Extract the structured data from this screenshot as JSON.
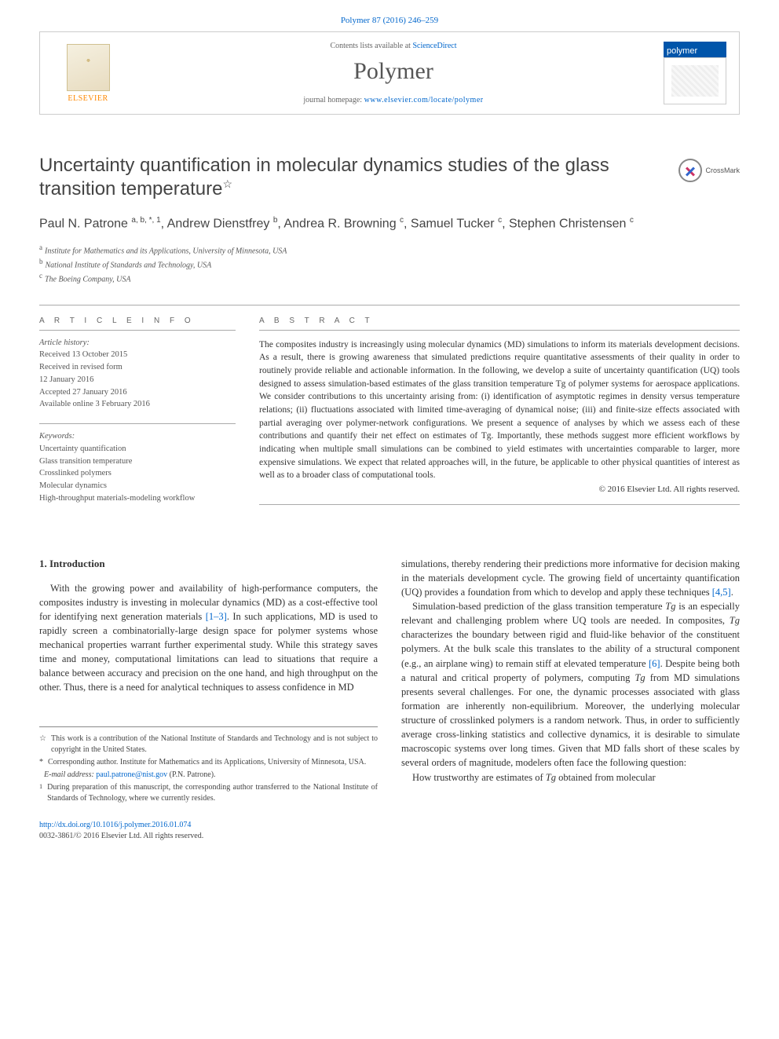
{
  "header": {
    "citation": "Polymer 87 (2016) 246–259",
    "contents_prefix": "Contents lists available at ",
    "contents_link": "ScienceDirect",
    "journal": "Polymer",
    "homepage_prefix": "journal homepage: ",
    "homepage_url": "www.elsevier.com/locate/polymer",
    "publisher": "ELSEVIER",
    "cover_label": "polymer"
  },
  "crossmark": "CrossMark",
  "title": "Uncertainty quantification in molecular dynamics studies of the glass transition temperature",
  "title_footnote_mark": "☆",
  "authors_html": {
    "a1_name": "Paul N. Patrone ",
    "a1_sup": "a, b, *, 1",
    "a2_name": ", Andrew Dienstfrey ",
    "a2_sup": "b",
    "a3_name": ", Andrea R. Browning ",
    "a3_sup": "c",
    "a4_name": ", Samuel Tucker ",
    "a4_sup": "c",
    "a5_name": ", Stephen Christensen ",
    "a5_sup": "c"
  },
  "affiliations": {
    "a": "Institute for Mathematics and its Applications, University of Minnesota, USA",
    "b": "National Institute of Standards and Technology, USA",
    "c": "The Boeing Company, USA"
  },
  "info": {
    "heading": "A R T I C L E   I N F O",
    "history_label": "Article history:",
    "received": "Received 13 October 2015",
    "revised1": "Received in revised form",
    "revised2": "12 January 2016",
    "accepted": "Accepted 27 January 2016",
    "online": "Available online 3 February 2016",
    "keywords_label": "Keywords:",
    "kw1": "Uncertainty quantification",
    "kw2": "Glass transition temperature",
    "kw3": "Crosslinked polymers",
    "kw4": "Molecular dynamics",
    "kw5": "High-throughput materials-modeling workflow"
  },
  "abstract": {
    "heading": "A B S T R A C T",
    "text": "The composites industry is increasingly using molecular dynamics (MD) simulations to inform its materials development decisions. As a result, there is growing awareness that simulated predictions require quantitative assessments of their quality in order to routinely provide reliable and actionable information. In the following, we develop a suite of uncertainty quantification (UQ) tools designed to assess simulation-based estimates of the glass transition temperature Tg of polymer systems for aerospace applications. We consider contributions to this uncertainty arising from: (i) identification of asymptotic regimes in density versus temperature relations; (ii) fluctuations associated with limited time-averaging of dynamical noise; (iii) and finite-size effects associated with partial averaging over polymer-network configurations. We present a sequence of analyses by which we assess each of these contributions and quantify their net effect on estimates of Tg. Importantly, these methods suggest more efficient workflows by indicating when multiple small simulations can be combined to yield estimates with uncertainties comparable to larger, more expensive simulations. We expect that related approaches will, in the future, be applicable to other physical quantities of interest as well as to a broader class of computational tools.",
    "copyright": "© 2016 Elsevier Ltd. All rights reserved."
  },
  "body": {
    "section_heading": "1. Introduction",
    "col1_p1a": "With the growing power and availability of high-performance computers, the composites industry is investing in molecular dynamics (MD) as a cost-effective tool for identifying next generation materials ",
    "col1_ref1": "[1–3]",
    "col1_p1b": ". In such applications, MD is used to rapidly screen a combinatorially-large design space for polymer systems whose mechanical properties warrant further experimental study. While this strategy saves time and money, computational limitations can lead to situations that require a balance between accuracy and precision on the one hand, and high throughput on the other. Thus, there is a need for analytical techniques to assess confidence in MD",
    "col2_p1a": "simulations, thereby rendering their predictions more informative for decision making in the materials development cycle. The growing field of uncertainty quantification (UQ) provides a foundation from which to develop and apply these techniques ",
    "col2_ref1": "[4,5]",
    "col2_p1b": ".",
    "col2_p2a": "Simulation-based prediction of the glass transition temperature ",
    "col2_tg1": "Tg",
    "col2_p2b": " is an especially relevant and challenging problem where UQ tools are needed. In composites, ",
    "col2_tg2": "Tg",
    "col2_p2c": " characterizes the boundary between rigid and fluid-like behavior of the constituent polymers. At the bulk scale this translates to the ability of a structural component (e.g., an airplane wing) to remain stiff at elevated temperature ",
    "col2_ref2": "[6]",
    "col2_p2d": ". Despite being both a natural and critical property of polymers, computing ",
    "col2_tg3": "Tg",
    "col2_p2e": " from MD simulations presents several challenges. For one, the dynamic processes associated with glass formation are inherently non-equilibrium. Moreover, the underlying molecular structure of crosslinked polymers is a random network. Thus, in order to sufficiently average cross-linking statistics and collective dynamics, it is desirable to simulate macroscopic systems over long times. Given that MD falls short of these scales by several orders of magnitude, modelers often face the following question:",
    "col2_p3a": "How trustworthy are estimates of ",
    "col2_tg4": "Tg",
    "col2_p3b": " obtained from molecular"
  },
  "footnotes": {
    "star": "This work is a contribution of the National Institute of Standards and Technology and is not subject to copyright in the United States.",
    "corr": "Corresponding author. Institute for Mathematics and its Applications, University of Minnesota, USA.",
    "email_label": "E-mail address:",
    "email": "paul.patrone@nist.gov",
    "email_who": " (P.N. Patrone).",
    "fn1": "During preparation of this manuscript, the corresponding author transferred to the National Institute of Standards of Technology, where we currently resides."
  },
  "doi": {
    "url": "http://dx.doi.org/10.1016/j.polymer.2016.01.074",
    "issn_line": "0032-3861/© 2016 Elsevier Ltd. All rights reserved."
  },
  "colors": {
    "link": "#0066cc",
    "publisher": "#ff8800",
    "cover_bg": "#0055aa",
    "text": "#333",
    "muted": "#666",
    "rule": "#aaa"
  },
  "typography": {
    "body_pt": 12.5,
    "title_pt": 24,
    "journal_pt": 30,
    "abstract_pt": 11.5,
    "footnote_pt": 10
  }
}
